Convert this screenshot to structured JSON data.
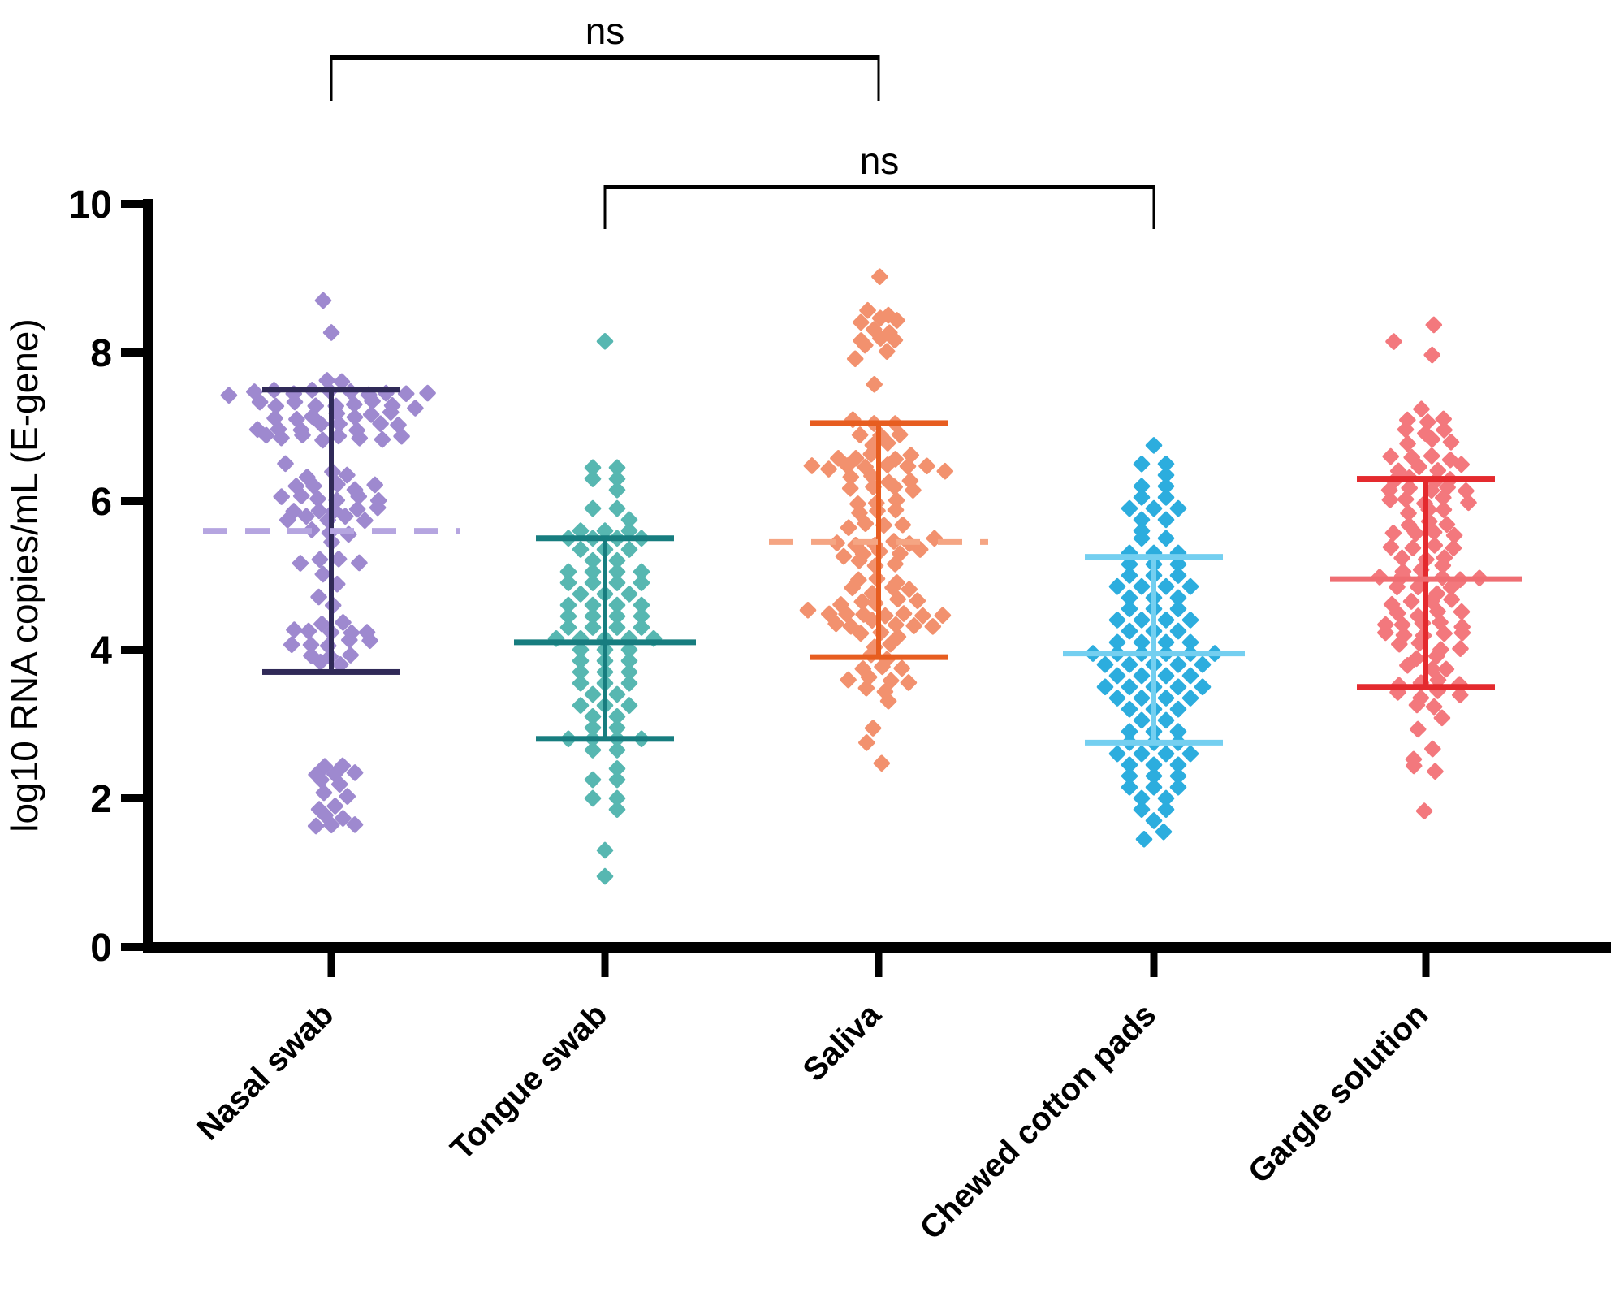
{
  "chart_data": {
    "type": "scatter",
    "subtype": "column-scatter-beeswarm-with-median-and-range",
    "title": "",
    "xlabel": "",
    "ylabel": "log10 RNA copies/mL (E-gene)",
    "ylim": [
      0,
      10
    ],
    "yticks": [
      0,
      2,
      4,
      6,
      8,
      10
    ],
    "grid": false,
    "legend": "none",
    "categories": [
      "Nasal swab",
      "Tongue swab",
      "Saliva",
      "Chewed cotton pads",
      "Gargle solution"
    ],
    "groups": [
      {
        "label": "Nasal swab",
        "dot_color": "#9e89cf",
        "line_color": "#302a58",
        "median_color": "#b5a5e0",
        "median_style": "dashed",
        "median": 5.6,
        "whisker_top": 7.5,
        "whisker_bottom": 3.7,
        "packing": "organic",
        "distribution_value_count": [
          [
            8.65,
            1,
            [
              0
            ]
          ],
          [
            8.3,
            1,
            [
              0
            ]
          ],
          [
            7.6,
            2
          ],
          [
            7.45,
            11
          ],
          [
            7.3,
            9
          ],
          [
            7.15,
            7
          ],
          [
            7.0,
            8
          ],
          [
            6.85,
            8
          ],
          [
            6.55,
            1,
            [
              -2.5
            ]
          ],
          [
            6.35,
            3
          ],
          [
            6.2,
            5
          ],
          [
            6.05,
            6
          ],
          [
            5.9,
            5
          ],
          [
            5.75,
            5
          ],
          [
            5.6,
            3
          ],
          [
            5.4,
            1,
            [
              0
            ]
          ],
          [
            5.2,
            4
          ],
          [
            5.05,
            1,
            [
              -0.5
            ]
          ],
          [
            4.85,
            1,
            [
              0.4
            ]
          ],
          [
            4.7,
            1,
            [
              -0.8
            ]
          ],
          [
            4.55,
            1,
            [
              0
            ]
          ],
          [
            4.35,
            2
          ],
          [
            4.25,
            5
          ],
          [
            4.1,
            5
          ],
          [
            3.95,
            3
          ],
          [
            3.8,
            2
          ],
          [
            2.45,
            2
          ],
          [
            2.35,
            3
          ],
          [
            2.2,
            2
          ],
          [
            2.05,
            2
          ],
          [
            1.9,
            2
          ],
          [
            1.75,
            2
          ],
          [
            1.6,
            3
          ]
        ]
      },
      {
        "label": "Tongue swab",
        "dot_color": "#57b7b1",
        "line_color": "#177d7f",
        "median_color": "#177d7f",
        "median_style": "solid",
        "median": 4.1,
        "whisker_top": 5.5,
        "whisker_bottom": 2.8,
        "packing": "grid",
        "distribution_value_count": [
          [
            8.15,
            1,
            [
              0
            ]
          ],
          [
            6.45,
            2
          ],
          [
            6.3,
            2
          ],
          [
            6.15,
            1,
            [
              0.5
            ]
          ],
          [
            5.9,
            2
          ],
          [
            5.75,
            1,
            [
              1
            ]
          ],
          [
            5.6,
            3
          ],
          [
            5.5,
            4
          ],
          [
            5.35,
            3
          ],
          [
            5.2,
            2
          ],
          [
            5.05,
            4
          ],
          [
            4.9,
            4
          ],
          [
            4.75,
            3
          ],
          [
            4.6,
            4
          ],
          [
            4.45,
            4
          ],
          [
            4.3,
            4
          ],
          [
            4.15,
            5
          ],
          [
            4.0,
            3
          ],
          [
            3.85,
            3
          ],
          [
            3.7,
            3
          ],
          [
            3.55,
            3
          ],
          [
            3.4,
            2
          ],
          [
            3.25,
            3
          ],
          [
            3.1,
            2
          ],
          [
            2.95,
            2
          ],
          [
            2.8,
            4
          ],
          [
            2.65,
            2
          ],
          [
            2.4,
            1,
            [
              0.5
            ]
          ],
          [
            2.25,
            2
          ],
          [
            2.0,
            2
          ],
          [
            1.85,
            1,
            [
              0.5
            ]
          ],
          [
            1.3,
            1,
            [
              0
            ]
          ],
          [
            0.95,
            1,
            [
              0
            ]
          ]
        ]
      },
      {
        "label": "Saliva",
        "dot_color": "#f2916e",
        "line_color": "#e75d20",
        "median_color": "#f5a583",
        "median_style": "dashed",
        "median": 5.45,
        "whisker_top": 7.05,
        "whisker_bottom": 3.9,
        "packing": "organic",
        "distribution_value_count": [
          [
            9.0,
            1,
            [
              0
            ]
          ],
          [
            8.55,
            2
          ],
          [
            8.45,
            3
          ],
          [
            8.3,
            2
          ],
          [
            8.2,
            3
          ],
          [
            8.05,
            2
          ],
          [
            7.95,
            1,
            [
              -1
            ]
          ],
          [
            7.55,
            1,
            [
              -0.4
            ]
          ],
          [
            7.05,
            3
          ],
          [
            6.9,
            3
          ],
          [
            6.75,
            2
          ],
          [
            6.6,
            5
          ],
          [
            6.45,
            8
          ],
          [
            6.3,
            4
          ],
          [
            6.15,
            4
          ],
          [
            6.0,
            3
          ],
          [
            5.85,
            3
          ],
          [
            5.65,
            4
          ],
          [
            5.45,
            6
          ],
          [
            5.3,
            5
          ],
          [
            5.15,
            3
          ],
          [
            4.95,
            3
          ],
          [
            4.8,
            4
          ],
          [
            4.65,
            5
          ],
          [
            4.5,
            8
          ],
          [
            4.35,
            6
          ],
          [
            4.2,
            3
          ],
          [
            4.05,
            2
          ],
          [
            3.9,
            2
          ],
          [
            3.75,
            3
          ],
          [
            3.6,
            4
          ],
          [
            3.45,
            2
          ],
          [
            3.3,
            1,
            [
              0.6
            ]
          ],
          [
            2.95,
            1,
            [
              0
            ]
          ],
          [
            2.75,
            1,
            [
              -0.3
            ]
          ],
          [
            2.5,
            1,
            [
              0.2
            ]
          ]
        ]
      },
      {
        "label": "Chewed cotton pads",
        "dot_color": "#2cadde",
        "line_color": "#74cff0",
        "median_color": "#74cff0",
        "median_style": "solid",
        "median": 3.95,
        "whisker_top": 5.25,
        "whisker_bottom": 2.75,
        "packing": "grid",
        "distribution_value_count": [
          [
            6.75,
            1,
            [
              0
            ]
          ],
          [
            6.5,
            2
          ],
          [
            6.35,
            1,
            [
              0.5
            ]
          ],
          [
            6.2,
            2
          ],
          [
            6.05,
            2
          ],
          [
            5.9,
            3
          ],
          [
            5.75,
            2
          ],
          [
            5.6,
            1,
            [
              -0.5
            ]
          ],
          [
            5.5,
            2
          ],
          [
            5.3,
            3
          ],
          [
            5.15,
            3
          ],
          [
            5.0,
            3
          ],
          [
            4.85,
            4
          ],
          [
            4.7,
            3
          ],
          [
            4.55,
            3
          ],
          [
            4.4,
            4
          ],
          [
            4.25,
            3
          ],
          [
            4.1,
            4
          ],
          [
            3.95,
            6
          ],
          [
            3.8,
            5
          ],
          [
            3.65,
            4
          ],
          [
            3.5,
            5
          ],
          [
            3.35,
            4
          ],
          [
            3.2,
            3
          ],
          [
            3.05,
            2
          ],
          [
            2.9,
            3
          ],
          [
            2.75,
            3
          ],
          [
            2.6,
            4
          ],
          [
            2.45,
            3
          ],
          [
            2.3,
            3
          ],
          [
            2.15,
            3
          ],
          [
            2.0,
            2
          ],
          [
            1.85,
            2
          ],
          [
            1.7,
            1,
            [
              0
            ]
          ],
          [
            1.55,
            1,
            [
              0.4
            ]
          ],
          [
            1.45,
            1,
            [
              -0.4
            ]
          ]
        ]
      },
      {
        "label": "Gargle solution",
        "dot_color": "#f3787d",
        "line_color": "#e42a2e",
        "median_color": "#ef6d72",
        "median_style": "solid",
        "median": 4.95,
        "whisker_top": 6.3,
        "whisker_bottom": 3.5,
        "packing": "organic",
        "distribution_value_count": [
          [
            8.4,
            1,
            [
              0.6
            ]
          ],
          [
            8.15,
            1,
            [
              -1.8
            ]
          ],
          [
            7.95,
            1,
            [
              0.2
            ]
          ],
          [
            7.25,
            1,
            [
              -0.3
            ]
          ],
          [
            7.1,
            3
          ],
          [
            6.95,
            3
          ],
          [
            6.8,
            3
          ],
          [
            6.6,
            4
          ],
          [
            6.45,
            4
          ],
          [
            6.3,
            4
          ],
          [
            6.15,
            5
          ],
          [
            6.0,
            5
          ],
          [
            5.85,
            3
          ],
          [
            5.7,
            3
          ],
          [
            5.55,
            4
          ],
          [
            5.4,
            4
          ],
          [
            5.25,
            3
          ],
          [
            5.1,
            3
          ],
          [
            4.95,
            6
          ],
          [
            4.8,
            4
          ],
          [
            4.65,
            4
          ],
          [
            4.5,
            4
          ],
          [
            4.35,
            5
          ],
          [
            4.2,
            5
          ],
          [
            4.05,
            4
          ],
          [
            3.9,
            2
          ],
          [
            3.75,
            3
          ],
          [
            3.55,
            4
          ],
          [
            3.4,
            4
          ],
          [
            3.25,
            2
          ],
          [
            3.1,
            1,
            [
              0.8
            ]
          ],
          [
            2.9,
            1,
            [
              -0.5
            ]
          ],
          [
            2.7,
            1,
            [
              0.3
            ]
          ],
          [
            2.55,
            1,
            [
              -0.8
            ]
          ],
          [
            2.4,
            2
          ],
          [
            1.8,
            1,
            [
              0
            ]
          ]
        ]
      }
    ],
    "significance": [
      {
        "label": "ns",
        "group_a": 0,
        "group_b": 2
      },
      {
        "label": "ns",
        "group_a": 1,
        "group_b": 3
      }
    ],
    "annotation_color": "#2b2b2b",
    "axis_color": "#000000"
  }
}
